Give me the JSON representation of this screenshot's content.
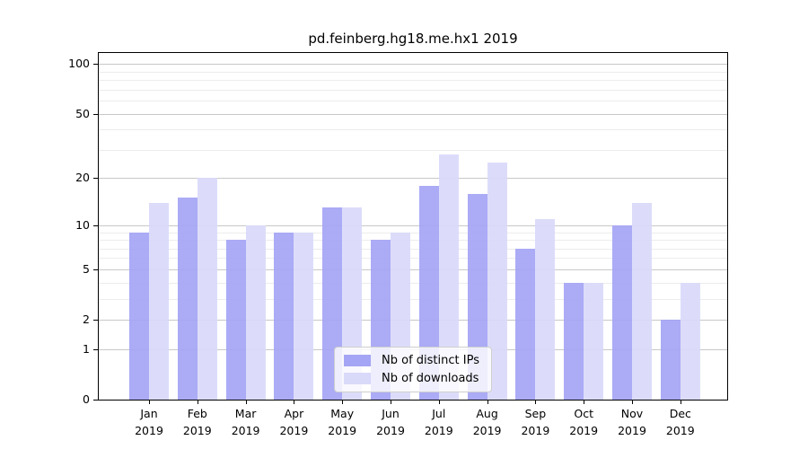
{
  "title": "pd.feinberg.hg18.me.hx1 2019",
  "chart_data": {
    "type": "bar",
    "title": "pd.feinberg.hg18.me.hx1 2019",
    "categories": [
      "Jan 2019",
      "Feb 2019",
      "Mar 2019",
      "Apr 2019",
      "May 2019",
      "Jun 2019",
      "Jul 2019",
      "Aug 2019",
      "Sep 2019",
      "Oct 2019",
      "Nov 2019",
      "Dec 2019"
    ],
    "x_months": [
      "Jan",
      "Feb",
      "Mar",
      "Apr",
      "May",
      "Jun",
      "Jul",
      "Aug",
      "Sep",
      "Oct",
      "Nov",
      "Dec"
    ],
    "x_year": "2019",
    "series": [
      {
        "name": "Nb of distinct IPs",
        "color": "#a5a5f5",
        "values": [
          9,
          15,
          8,
          9,
          13,
          8,
          18,
          16,
          7,
          4,
          10,
          2
        ]
      },
      {
        "name": "Nb of downloads",
        "color": "#d9d9fa",
        "values": [
          14,
          20,
          10,
          9,
          13,
          9,
          28,
          25,
          11,
          4,
          14,
          4
        ]
      }
    ],
    "xlabel": "",
    "ylabel": "",
    "y_scale": "log1p",
    "y_ticks": [
      100,
      50,
      20,
      10,
      5,
      2,
      1,
      0
    ],
    "y_minor_ticks": [
      3,
      4,
      6,
      7,
      8,
      9,
      30,
      40,
      60,
      70,
      80,
      90
    ],
    "ylim": [
      0,
      119
    ],
    "grid": true,
    "legend_position": "lower center inside"
  },
  "colors": {
    "background": "#ffffff",
    "axis": "#000000",
    "grid_major": "#c8c8c8",
    "grid_minor": "#ececec",
    "legend_border": "#cfcfcf"
  }
}
